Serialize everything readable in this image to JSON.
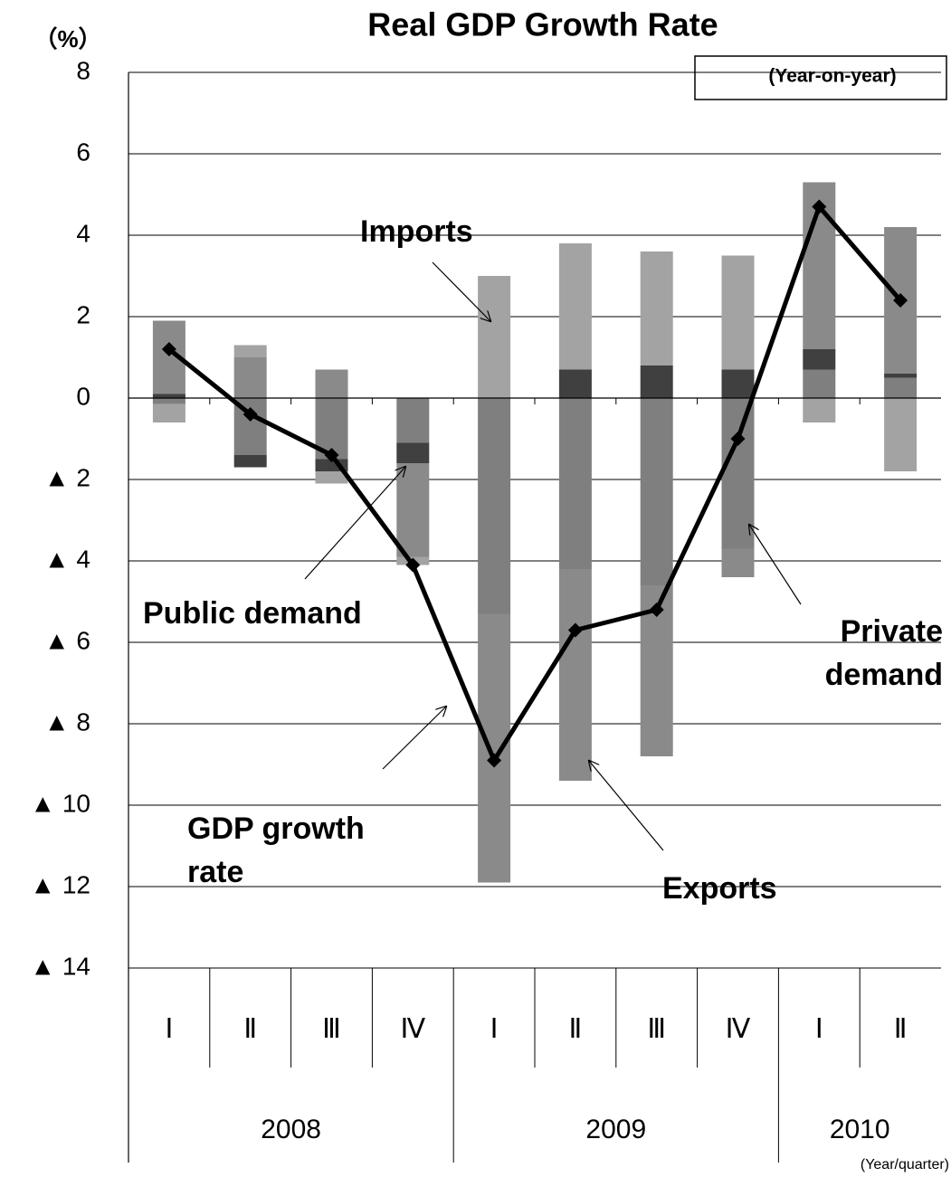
{
  "chart_data": {
    "type": "bar",
    "stacked": true,
    "title": "Real GDP Growth Rate",
    "y_label": "（%）",
    "note": "(Year-on-year)",
    "x_label": "(Year/quarter)",
    "categories": [
      "Ⅰ",
      "Ⅱ",
      "Ⅲ",
      "Ⅳ",
      "Ⅰ",
      "Ⅱ",
      "Ⅲ",
      "Ⅳ",
      "Ⅰ",
      "Ⅱ"
    ],
    "groups": [
      {
        "label": "2008",
        "count": 4
      },
      {
        "label": "2009",
        "count": 4
      },
      {
        "label": "2010",
        "count": 2
      }
    ],
    "ylim": [
      -14,
      8
    ],
    "yticks": [
      8,
      6,
      4,
      2,
      0,
      {
        "value": -2,
        "label": "▲ 2"
      },
      {
        "value": -4,
        "label": "▲ 4"
      },
      {
        "value": -6,
        "label": "▲ 6"
      },
      {
        "value": -8,
        "label": "▲ 8"
      },
      {
        "value": -10,
        "label": "▲ 10"
      },
      {
        "value": -12,
        "label": "▲ 12"
      },
      {
        "value": -14,
        "label": "▲ 14"
      }
    ],
    "grid": true,
    "series": [
      {
        "name": "Private demand",
        "color": "#7f7f7f",
        "values": [
          -0.15,
          -1.4,
          -1.5,
          -1.1,
          -5.3,
          -4.2,
          -4.6,
          -3.7,
          0.7,
          0.5
        ]
      },
      {
        "name": "Public demand",
        "color": "#404040",
        "values": [
          0.1,
          -0.3,
          -0.3,
          -0.5,
          0,
          0.7,
          0.8,
          0.7,
          0.5,
          0.1
        ]
      },
      {
        "name": "Exports",
        "color": "#8a8a8a",
        "values": [
          1.8,
          1.0,
          0.7,
          -2.3,
          -6.6,
          -5.2,
          -4.2,
          -0.7,
          4.1,
          3.6
        ]
      },
      {
        "name": "Imports",
        "color": "#a3a3a3",
        "values": [
          -0.45,
          0.3,
          -0.3,
          -0.2,
          3.0,
          3.1,
          2.8,
          2.8,
          -0.6,
          -1.8
        ]
      },
      {
        "name": "GDP growth rate",
        "type": "line",
        "color": "#000000",
        "values": [
          1.2,
          -0.4,
          -1.4,
          -4.1,
          -8.9,
          -5.7,
          -5.2,
          -1.0,
          4.7,
          2.4
        ]
      }
    ]
  }
}
